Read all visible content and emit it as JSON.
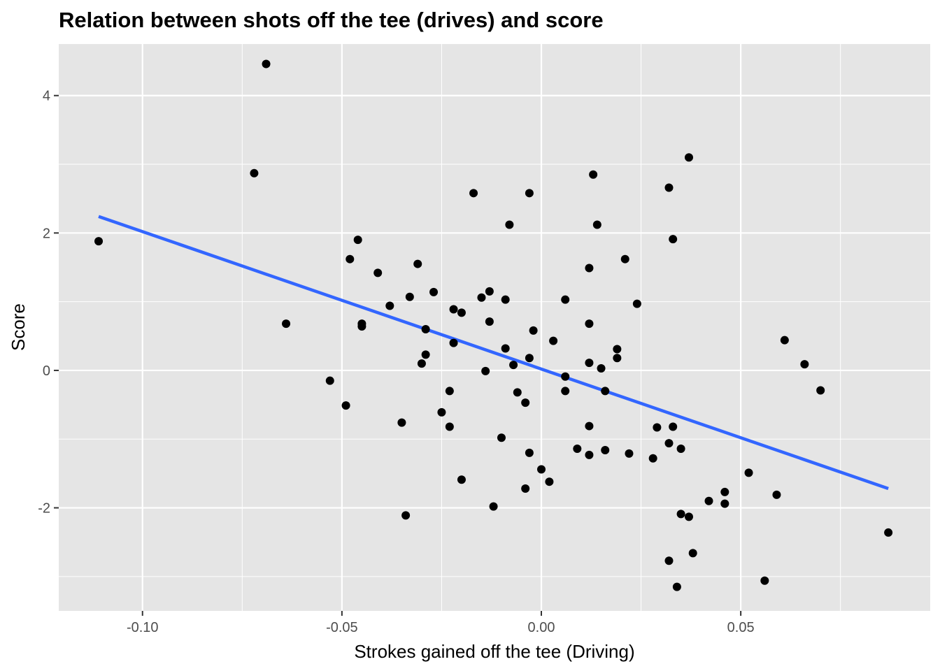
{
  "chart_data": {
    "type": "scatter",
    "title": "Relation between shots off the tee (drives) and score",
    "xlabel": "Strokes gained off the tee (Driving)",
    "ylabel": "Score",
    "xlim": [
      -0.121,
      0.0975
    ],
    "ylim": [
      -3.5,
      4.75
    ],
    "x_ticks": [
      -0.1,
      -0.05,
      0.0,
      0.05
    ],
    "x_tick_labels": [
      "-0.10",
      "-0.05",
      "0.00",
      "0.05"
    ],
    "y_ticks": [
      -2,
      0,
      2,
      4
    ],
    "y_tick_labels": [
      "-2",
      "0",
      "2",
      "4"
    ],
    "grid": true,
    "background": "#e5e5e5",
    "grid_color": "#ffffff",
    "point_color": "#000000",
    "points": [
      {
        "x": -0.111,
        "y": 1.88
      },
      {
        "x": -0.069,
        "y": 4.46
      },
      {
        "x": -0.072,
        "y": 2.87
      },
      {
        "x": -0.064,
        "y": 0.68
      },
      {
        "x": -0.053,
        "y": -0.15
      },
      {
        "x": -0.049,
        "y": -0.51
      },
      {
        "x": -0.048,
        "y": 1.62
      },
      {
        "x": -0.046,
        "y": 1.9
      },
      {
        "x": -0.045,
        "y": 0.68
      },
      {
        "x": -0.045,
        "y": 0.64
      },
      {
        "x": -0.041,
        "y": 1.42
      },
      {
        "x": -0.038,
        "y": 0.94
      },
      {
        "x": -0.035,
        "y": -0.76
      },
      {
        "x": -0.034,
        "y": -2.11
      },
      {
        "x": -0.033,
        "y": 1.07
      },
      {
        "x": -0.031,
        "y": 1.55
      },
      {
        "x": -0.03,
        "y": 0.1
      },
      {
        "x": -0.029,
        "y": 0.6
      },
      {
        "x": -0.029,
        "y": 0.23
      },
      {
        "x": -0.027,
        "y": 1.14
      },
      {
        "x": -0.025,
        "y": -0.61
      },
      {
        "x": -0.023,
        "y": -0.3
      },
      {
        "x": -0.023,
        "y": -0.82
      },
      {
        "x": -0.022,
        "y": 0.89
      },
      {
        "x": -0.022,
        "y": 0.4
      },
      {
        "x": -0.02,
        "y": 0.84
      },
      {
        "x": -0.02,
        "y": -1.59
      },
      {
        "x": -0.017,
        "y": 2.58
      },
      {
        "x": -0.015,
        "y": 1.06
      },
      {
        "x": -0.014,
        "y": -0.01
      },
      {
        "x": -0.013,
        "y": 1.15
      },
      {
        "x": -0.013,
        "y": 0.71
      },
      {
        "x": -0.012,
        "y": -1.98
      },
      {
        "x": -0.01,
        "y": -0.98
      },
      {
        "x": -0.009,
        "y": 1.03
      },
      {
        "x": -0.009,
        "y": 0.32
      },
      {
        "x": -0.008,
        "y": 2.12
      },
      {
        "x": -0.007,
        "y": 0.08
      },
      {
        "x": -0.006,
        "y": -0.32
      },
      {
        "x": -0.004,
        "y": -0.47
      },
      {
        "x": -0.004,
        "y": -1.72
      },
      {
        "x": -0.003,
        "y": 2.58
      },
      {
        "x": -0.003,
        "y": -1.2
      },
      {
        "x": -0.003,
        "y": 0.18
      },
      {
        "x": -0.002,
        "y": 0.58
      },
      {
        "x": 0.0,
        "y": -1.44
      },
      {
        "x": 0.002,
        "y": -1.62
      },
      {
        "x": 0.003,
        "y": 0.43
      },
      {
        "x": 0.006,
        "y": 1.03
      },
      {
        "x": 0.006,
        "y": -0.09
      },
      {
        "x": 0.006,
        "y": -0.3
      },
      {
        "x": 0.009,
        "y": -1.14
      },
      {
        "x": 0.012,
        "y": 1.49
      },
      {
        "x": 0.012,
        "y": 0.68
      },
      {
        "x": 0.012,
        "y": 0.11
      },
      {
        "x": 0.012,
        "y": -0.81
      },
      {
        "x": 0.012,
        "y": -1.23
      },
      {
        "x": 0.013,
        "y": 2.85
      },
      {
        "x": 0.014,
        "y": 2.12
      },
      {
        "x": 0.015,
        "y": 0.03
      },
      {
        "x": 0.016,
        "y": -0.3
      },
      {
        "x": 0.016,
        "y": -1.16
      },
      {
        "x": 0.019,
        "y": 0.31
      },
      {
        "x": 0.019,
        "y": 0.18
      },
      {
        "x": 0.021,
        "y": 1.62
      },
      {
        "x": 0.022,
        "y": -1.21
      },
      {
        "x": 0.024,
        "y": 0.97
      },
      {
        "x": 0.028,
        "y": -1.28
      },
      {
        "x": 0.029,
        "y": -0.83
      },
      {
        "x": 0.032,
        "y": 2.66
      },
      {
        "x": 0.032,
        "y": -1.06
      },
      {
        "x": 0.032,
        "y": -2.77
      },
      {
        "x": 0.033,
        "y": 1.91
      },
      {
        "x": 0.033,
        "y": -0.82
      },
      {
        "x": 0.034,
        "y": -3.15
      },
      {
        "x": 0.035,
        "y": -1.14
      },
      {
        "x": 0.035,
        "y": -2.09
      },
      {
        "x": 0.037,
        "y": 3.1
      },
      {
        "x": 0.037,
        "y": -2.13
      },
      {
        "x": 0.038,
        "y": -2.66
      },
      {
        "x": 0.042,
        "y": -1.9
      },
      {
        "x": 0.046,
        "y": -1.77
      },
      {
        "x": 0.046,
        "y": -1.94
      },
      {
        "x": 0.052,
        "y": -1.49
      },
      {
        "x": 0.056,
        "y": -3.06
      },
      {
        "x": 0.059,
        "y": -1.81
      },
      {
        "x": 0.061,
        "y": 0.44
      },
      {
        "x": 0.066,
        "y": 0.09
      },
      {
        "x": 0.07,
        "y": -0.29
      },
      {
        "x": 0.087,
        "y": -2.36
      }
    ],
    "trend_line": {
      "type": "linear",
      "color": "#3366ff",
      "from": {
        "x": -0.111,
        "y": 2.24
      },
      "to": {
        "x": 0.087,
        "y": -1.72
      }
    }
  }
}
